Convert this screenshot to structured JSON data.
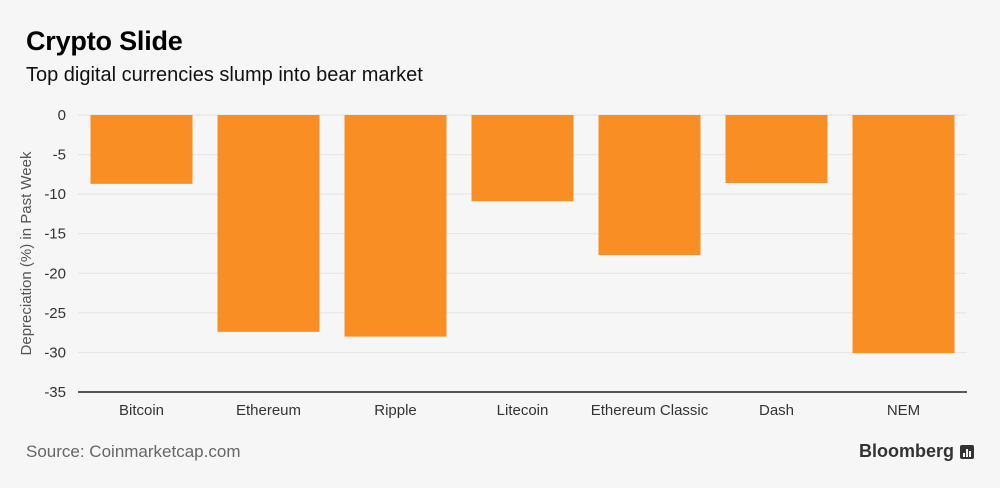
{
  "header": {
    "title": "Crypto Slide",
    "subtitle": "Top digital currencies slump into bear market"
  },
  "footer": {
    "source": "Source: Coinmarketcap.com",
    "brand": "Bloomberg"
  },
  "colors": {
    "bar": "#f98e24",
    "grid": "#e3e3e3",
    "axis": "#222222"
  },
  "chart_data": {
    "type": "bar",
    "title": "Crypto Slide",
    "subtitle": "Top digital currencies slump into bear market",
    "xlabel": "",
    "ylabel": "Depreciation (%) in Past Week",
    "categories": [
      "Bitcoin",
      "Ethereum",
      "Ripple",
      "Litecoin",
      "Ethereum Classic",
      "Dash",
      "NEM"
    ],
    "values": [
      -8.7,
      -27.4,
      -28.0,
      -10.9,
      -17.7,
      -8.6,
      -30.1
    ],
    "ylim": [
      -35,
      0
    ],
    "yticks": [
      0,
      -5,
      -10,
      -15,
      -20,
      -25,
      -30,
      -35
    ],
    "grid": true,
    "legend": "none"
  }
}
